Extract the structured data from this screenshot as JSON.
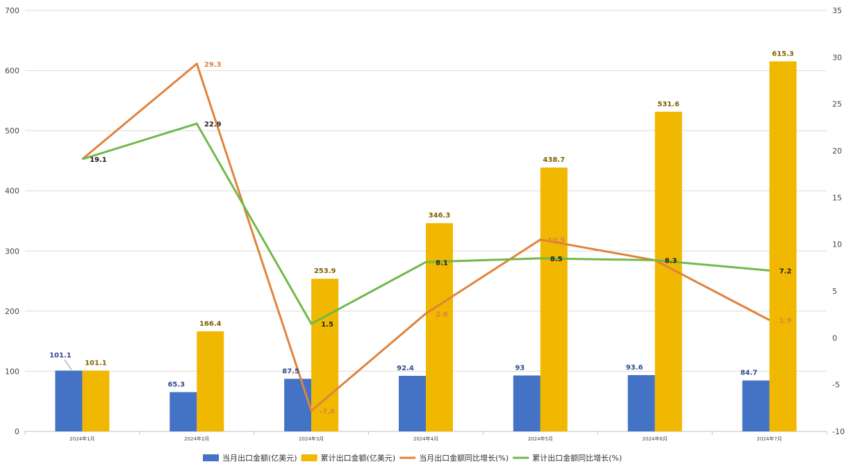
{
  "chart_data": {
    "type": "bar",
    "categories": [
      "2024年1月",
      "2024年2月",
      "2024年3月",
      "2024年4月",
      "2024年5月",
      "2024年6月",
      "2024年7月"
    ],
    "series": [
      {
        "name": "当月出口金额(亿美元)",
        "kind": "bar",
        "axis": "left",
        "color": "#4472C4",
        "label_color": "#2E4C8C",
        "values": [
          101.1,
          65.3,
          87.5,
          92.4,
          93,
          93.6,
          84.7
        ]
      },
      {
        "name": "累计出口金额(亿美元)",
        "kind": "bar",
        "axis": "left",
        "color": "#F0B800",
        "label_color": "#7F6000",
        "values": [
          101.1,
          166.4,
          253.9,
          346.3,
          438.7,
          531.6,
          615.3
        ]
      },
      {
        "name": "当月出口金额同比增长(%)",
        "kind": "line",
        "axis": "right",
        "color": "#E0823D",
        "label_color": "#E0823D",
        "values": [
          19.1,
          29.3,
          -7.8,
          2.6,
          10.5,
          8.3,
          1.9
        ]
      },
      {
        "name": "累计出口金额同比增长(%)",
        "kind": "line",
        "axis": "right",
        "color": "#70B94A",
        "label_color": "#222222",
        "values": [
          19.1,
          22.9,
          1.5,
          8.1,
          8.5,
          8.3,
          7.2
        ]
      }
    ],
    "y_left": {
      "min": 0,
      "max": 700,
      "ticks": [
        "0",
        "100",
        "200",
        "300",
        "400",
        "500",
        "600",
        "700"
      ]
    },
    "y_right": {
      "min": -10,
      "max": 35,
      "ticks": [
        "-10",
        "-5",
        "0",
        "5",
        "10",
        "15",
        "20",
        "25",
        "30",
        "35"
      ]
    },
    "grid": true,
    "legend_position": "bottom"
  }
}
